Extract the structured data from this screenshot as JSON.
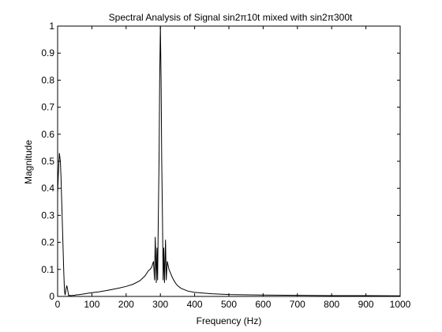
{
  "chart_data": {
    "type": "line",
    "title": "Spectral Analysis of Signal sin2π10t mixed with sin2π300t",
    "xlabel": "Frequency (Hz)",
    "ylabel": "Magnitude",
    "xlim": [
      0,
      1000
    ],
    "ylim": [
      0,
      1
    ],
    "xticks": [
      0,
      100,
      200,
      300,
      400,
      500,
      600,
      700,
      800,
      900,
      1000
    ],
    "yticks": [
      0,
      0.1,
      0.2,
      0.3,
      0.4,
      0.5,
      0.6,
      0.7,
      0.8,
      0.9,
      1
    ],
    "ytick_labels": [
      "0",
      "0.1",
      "0.2",
      "0.3",
      "0.4",
      "0.5",
      "0.6",
      "0.7",
      "0.8",
      "0.9",
      "1"
    ],
    "grid": false,
    "color": "#000000",
    "series": [
      {
        "x": [
          0,
          2,
          5,
          8,
          10,
          12,
          15,
          18,
          20,
          22,
          25,
          27,
          30,
          32,
          35,
          40,
          45,
          50,
          55,
          60,
          70,
          80,
          90,
          100,
          120,
          140,
          160,
          180,
          200,
          220,
          240,
          250,
          255,
          260,
          265,
          270,
          275,
          280,
          283,
          285,
          288,
          290,
          292,
          294,
          296,
          298,
          300,
          302,
          304,
          306,
          308,
          310,
          312,
          315,
          317,
          320,
          325,
          330,
          335,
          340,
          345,
          350,
          360,
          380,
          400,
          450,
          500,
          600,
          700,
          800,
          900,
          1000
        ],
        "y": [
          0.38,
          0.45,
          0.53,
          0.5,
          0.44,
          0.35,
          0.22,
          0.09,
          0.02,
          0.005,
          0.03,
          0.04,
          0.02,
          0.003,
          0.004,
          0.003,
          0.004,
          0.004,
          0.006,
          0.006,
          0.008,
          0.01,
          0.012,
          0.014,
          0.017,
          0.021,
          0.026,
          0.031,
          0.037,
          0.045,
          0.058,
          0.07,
          0.076,
          0.085,
          0.095,
          0.1,
          0.11,
          0.13,
          0.06,
          0.22,
          0.05,
          0.18,
          0.06,
          0.3,
          0.5,
          0.8,
          1.0,
          0.8,
          0.5,
          0.3,
          0.06,
          0.18,
          0.05,
          0.21,
          0.06,
          0.13,
          0.1,
          0.085,
          0.07,
          0.058,
          0.048,
          0.04,
          0.03,
          0.02,
          0.015,
          0.01,
          0.007,
          0.005,
          0.004,
          0.003,
          0.003,
          0.002
        ]
      }
    ]
  }
}
